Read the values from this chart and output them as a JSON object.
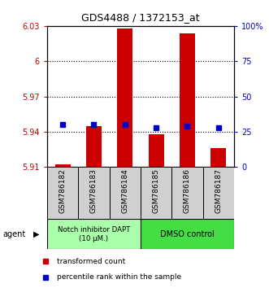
{
  "title": "GDS4488 / 1372153_at",
  "samples": [
    "GSM786182",
    "GSM786183",
    "GSM786184",
    "GSM786185",
    "GSM786186",
    "GSM786187"
  ],
  "ylim_left": [
    5.91,
    6.03
  ],
  "ylim_right": [
    0,
    100
  ],
  "yticks_left": [
    5.91,
    5.94,
    5.97,
    6.0,
    6.03
  ],
  "yticks_right": [
    0,
    25,
    50,
    75,
    100
  ],
  "ytick_labels_left": [
    "5.91",
    "5.94",
    "5.97",
    "6",
    "6.03"
  ],
  "ytick_labels_right": [
    "0",
    "25",
    "50",
    "75",
    "100%"
  ],
  "bar_bottom": 5.91,
  "red_values": [
    5.912,
    5.945,
    6.028,
    5.938,
    6.024,
    5.926
  ],
  "blue_values_pct": [
    30,
    30,
    30,
    28,
    29,
    28
  ],
  "bar_color": "#cc0000",
  "blue_color": "#0000cc",
  "grid_yticks": [
    5.94,
    5.97,
    6.0
  ],
  "group1_color": "#aaffaa",
  "group2_color": "#44dd44",
  "group1_label": "Notch inhibitor DAPT\n(10 μM.)",
  "group2_label": "DMSO control",
  "legend_red": "transformed count",
  "legend_blue": "percentile rank within the sample",
  "agent_label": "agent"
}
